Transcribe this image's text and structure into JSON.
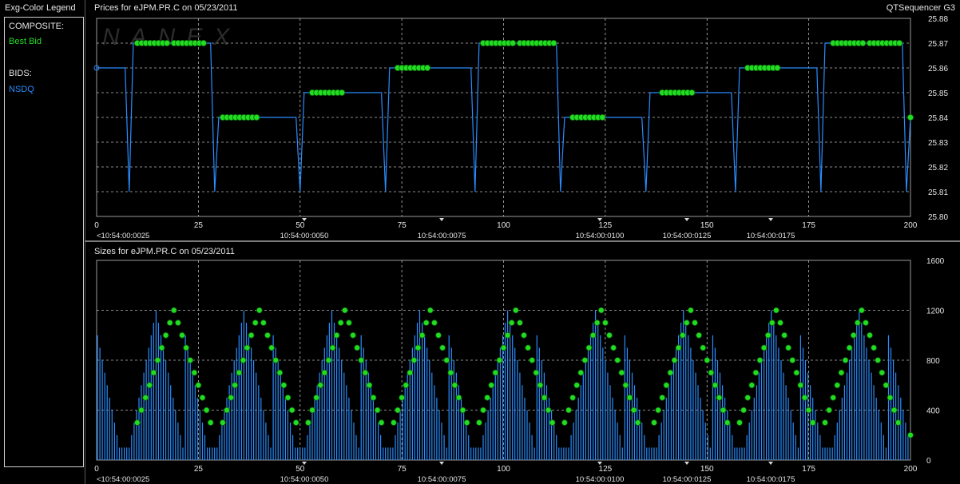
{
  "legend": {
    "title": "Exg-Color Legend",
    "composite_label": "COMPOSITE:",
    "composite_item": "Best Bid",
    "bids_label": "BIDS:",
    "bids_item": "NSDQ",
    "colors": {
      "best_bid": "#22dd22",
      "nsdq": "#2a8cff"
    }
  },
  "app_name": "QTSequencer G3",
  "watermark": "NANEX",
  "price_panel_title": "Prices for  eJPM.PR.C  on  05/23/2011",
  "size_panel_title": "Sizes for  eJPM.PR.C  on  05/23/2011",
  "time_labels": [
    "<10:54:00:0025",
    "10:54:00:0050",
    "10:54:00:0075",
    "10:54:00:0100",
    "10:54:00:0125",
    "10:54:00:0175"
  ],
  "chart_data": [
    {
      "type": "line",
      "title": "Prices for  eJPM.PR.C  on  05/23/2011",
      "xlim": [
        0,
        200
      ],
      "ylim": [
        25.8,
        25.88
      ],
      "x_ticks": [
        0,
        25,
        50,
        75,
        100,
        125,
        150,
        175,
        200
      ],
      "y_ticks": [
        "25.80",
        "25.81",
        "25.82",
        "25.83",
        "25.84",
        "25.85",
        "25.86",
        "25.87",
        "25.88"
      ],
      "grid": true,
      "series": [
        {
          "name": "NSDQ",
          "color": "#2a8cff",
          "points": [
            [
              0,
              25.86
            ],
            [
              7,
              25.86
            ],
            [
              8,
              25.81
            ],
            [
              9,
              25.87
            ],
            [
              28,
              25.87
            ],
            [
              29,
              25.81
            ],
            [
              30,
              25.84
            ],
            [
              49,
              25.84
            ],
            [
              50,
              25.81
            ],
            [
              51,
              25.85
            ],
            [
              70,
              25.85
            ],
            [
              71,
              25.81
            ],
            [
              72,
              25.86
            ],
            [
              92,
              25.86
            ],
            [
              93,
              25.81
            ],
            [
              94,
              25.87
            ],
            [
              113,
              25.87
            ],
            [
              114,
              25.81
            ],
            [
              115,
              25.84
            ],
            [
              134,
              25.84
            ],
            [
              135,
              25.81
            ],
            [
              136,
              25.85
            ],
            [
              156,
              25.85
            ],
            [
              157,
              25.81
            ],
            [
              158,
              25.86
            ],
            [
              177,
              25.86
            ],
            [
              178,
              25.81
            ],
            [
              179,
              25.87
            ],
            [
              198,
              25.87
            ],
            [
              199,
              25.81
            ],
            [
              200,
              25.84
            ]
          ]
        },
        {
          "name": "Best Bid",
          "color": "#22dd22",
          "markers": [
            {
              "x_start": 10,
              "x_end": 18,
              "y": 25.87
            },
            {
              "x_start": 19,
              "x_end": 27,
              "y": 25.87
            },
            {
              "x_start": 31,
              "x_end": 40,
              "y": 25.84
            },
            {
              "x_start": 53,
              "x_end": 61,
              "y": 25.85
            },
            {
              "x_start": 74,
              "x_end": 82,
              "y": 25.86
            },
            {
              "x_start": 95,
              "x_end": 103,
              "y": 25.87
            },
            {
              "x_start": 104,
              "x_end": 113,
              "y": 25.87
            },
            {
              "x_start": 117,
              "x_end": 125,
              "y": 25.84
            },
            {
              "x_start": 139,
              "x_end": 147,
              "y": 25.85
            },
            {
              "x_start": 160,
              "x_end": 168,
              "y": 25.86
            },
            {
              "x_start": 181,
              "x_end": 189,
              "y": 25.87
            },
            {
              "x_start": 190,
              "x_end": 198,
              "y": 25.87
            },
            {
              "x_start": 200,
              "x_end": 200,
              "y": 25.84
            }
          ]
        }
      ]
    },
    {
      "type": "bar",
      "title": "Sizes for  eJPM.PR.C  on  05/23/2011",
      "xlim": [
        0,
        200
      ],
      "ylim": [
        0,
        1600
      ],
      "x_ticks": [
        0,
        25,
        50,
        75,
        100,
        125,
        150,
        175,
        200
      ],
      "y_ticks": [
        "0",
        "400",
        "800",
        "1200",
        "1600"
      ],
      "grid": true,
      "cycle_length": 21.3,
      "cycle_count": 10,
      "size_profile": [
        1000,
        900,
        800,
        700,
        600,
        500,
        400,
        300,
        200,
        100,
        100,
        100,
        100,
        100,
        200,
        300,
        400,
        500,
        600,
        700,
        800,
        900,
        1000,
        1100,
        1200,
        1100,
        1000,
        900,
        800,
        700,
        600,
        500,
        400,
        300,
        200,
        100
      ],
      "best_bid_peaks": [
        19,
        40,
        61,
        82,
        103,
        124,
        146,
        167,
        188
      ],
      "series": [
        {
          "name": "NSDQ",
          "color": "#2a8cff"
        },
        {
          "name": "Best Bid",
          "color": "#22dd22"
        }
      ]
    }
  ]
}
